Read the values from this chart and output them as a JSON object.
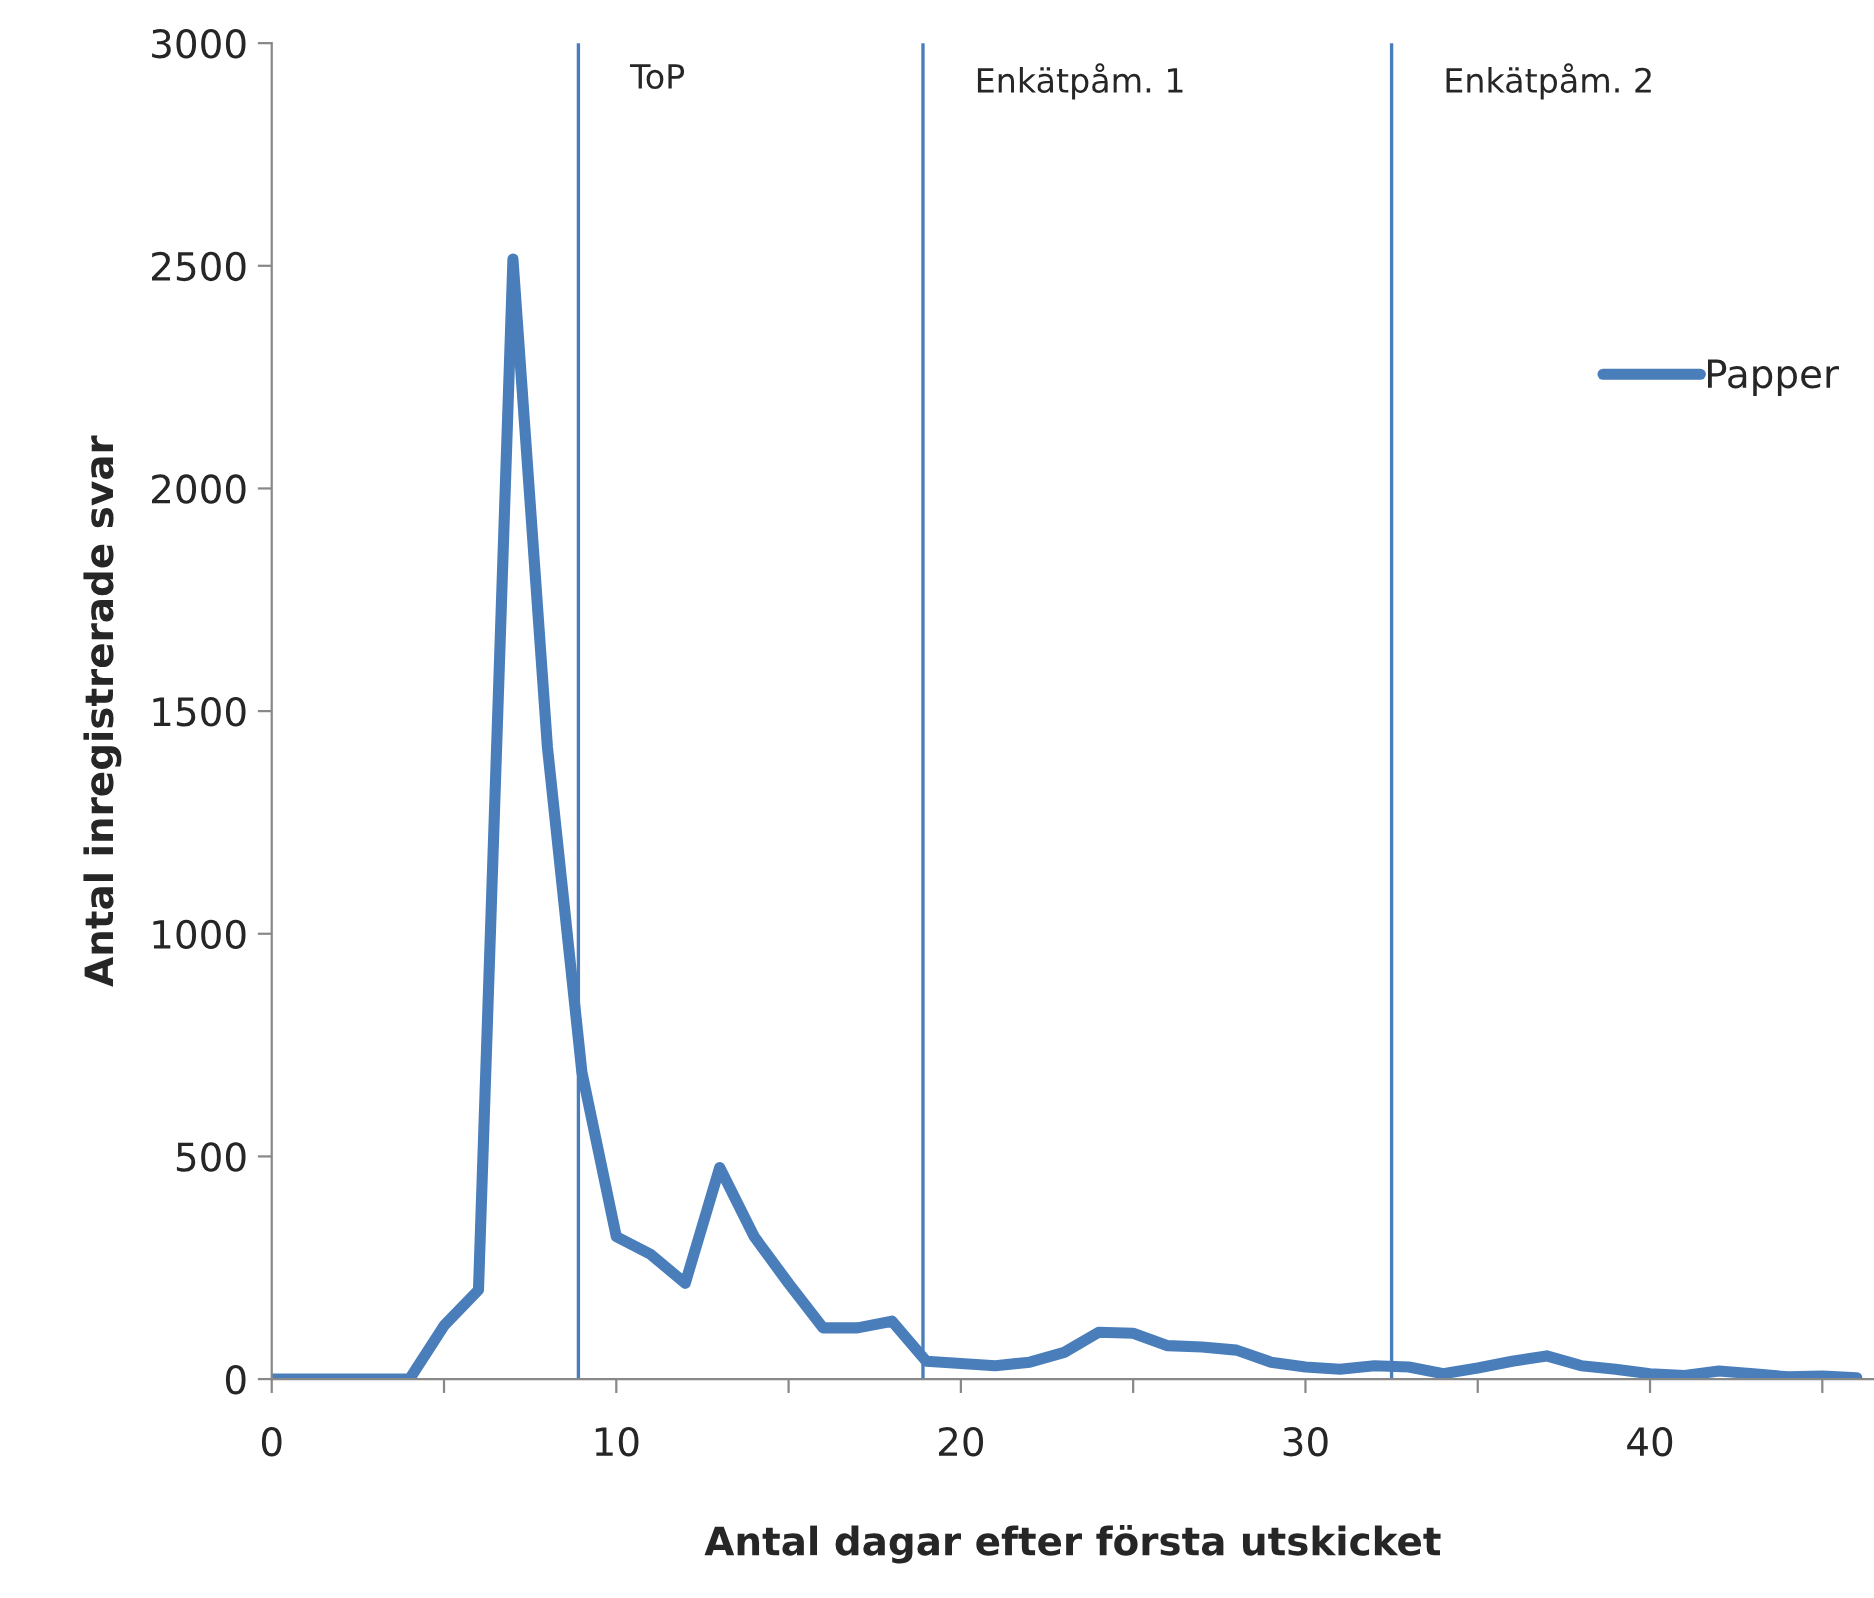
{
  "chart_data": {
    "type": "line",
    "xlabel": "Antal dagar efter första utskicket",
    "ylabel": "Antal inregistrerade svar",
    "x": [
      0,
      1,
      2,
      3,
      4,
      5,
      6,
      7,
      8,
      9,
      10,
      11,
      12,
      13,
      14,
      15,
      16,
      17,
      18,
      19,
      20,
      21,
      22,
      23,
      24,
      25,
      26,
      27,
      28,
      29,
      30,
      31,
      32,
      33,
      34,
      35,
      36,
      37,
      38,
      39,
      40,
      41,
      42,
      43,
      44,
      45,
      46
    ],
    "series": [
      {
        "name": "Papper",
        "color": "#4a7ebb",
        "values": [
          0,
          0,
          0,
          0,
          0,
          120,
          200,
          2515,
          1420,
          690,
          320,
          280,
          215,
          475,
          320,
          215,
          115,
          115,
          130,
          40,
          35,
          30,
          38,
          60,
          105,
          103,
          75,
          72,
          65,
          38,
          27,
          22,
          30,
          27,
          12,
          25,
          40,
          52,
          30,
          22,
          12,
          8,
          18,
          12,
          5,
          7,
          3
        ]
      }
    ],
    "xlim": [
      0,
      46.5
    ],
    "ylim": [
      0,
      3000
    ],
    "xticks": [
      0,
      {
        "value": 5,
        "label": null
      },
      10,
      {
        "value": 15,
        "label": null
      },
      20,
      {
        "value": 25,
        "label": null
      },
      30,
      {
        "value": 35,
        "label": null
      },
      40,
      {
        "value": 45,
        "label": null
      }
    ],
    "yticks": [
      0,
      500,
      1000,
      1500,
      2000,
      2500,
      3000
    ],
    "ref_lines": [
      {
        "axis": "x",
        "value": 8.9,
        "label": "ToP",
        "color": "#4a7ebb"
      },
      {
        "axis": "x",
        "value": 18.9,
        "label": "Enkätpåm. 1",
        "color": "#4a7ebb"
      },
      {
        "axis": "x",
        "value": 32.5,
        "label": "Enkätpåm. 2",
        "color": "#4a7ebb"
      }
    ],
    "grid": false,
    "legend": "right",
    "marker": "none",
    "line_style": "solid"
  }
}
